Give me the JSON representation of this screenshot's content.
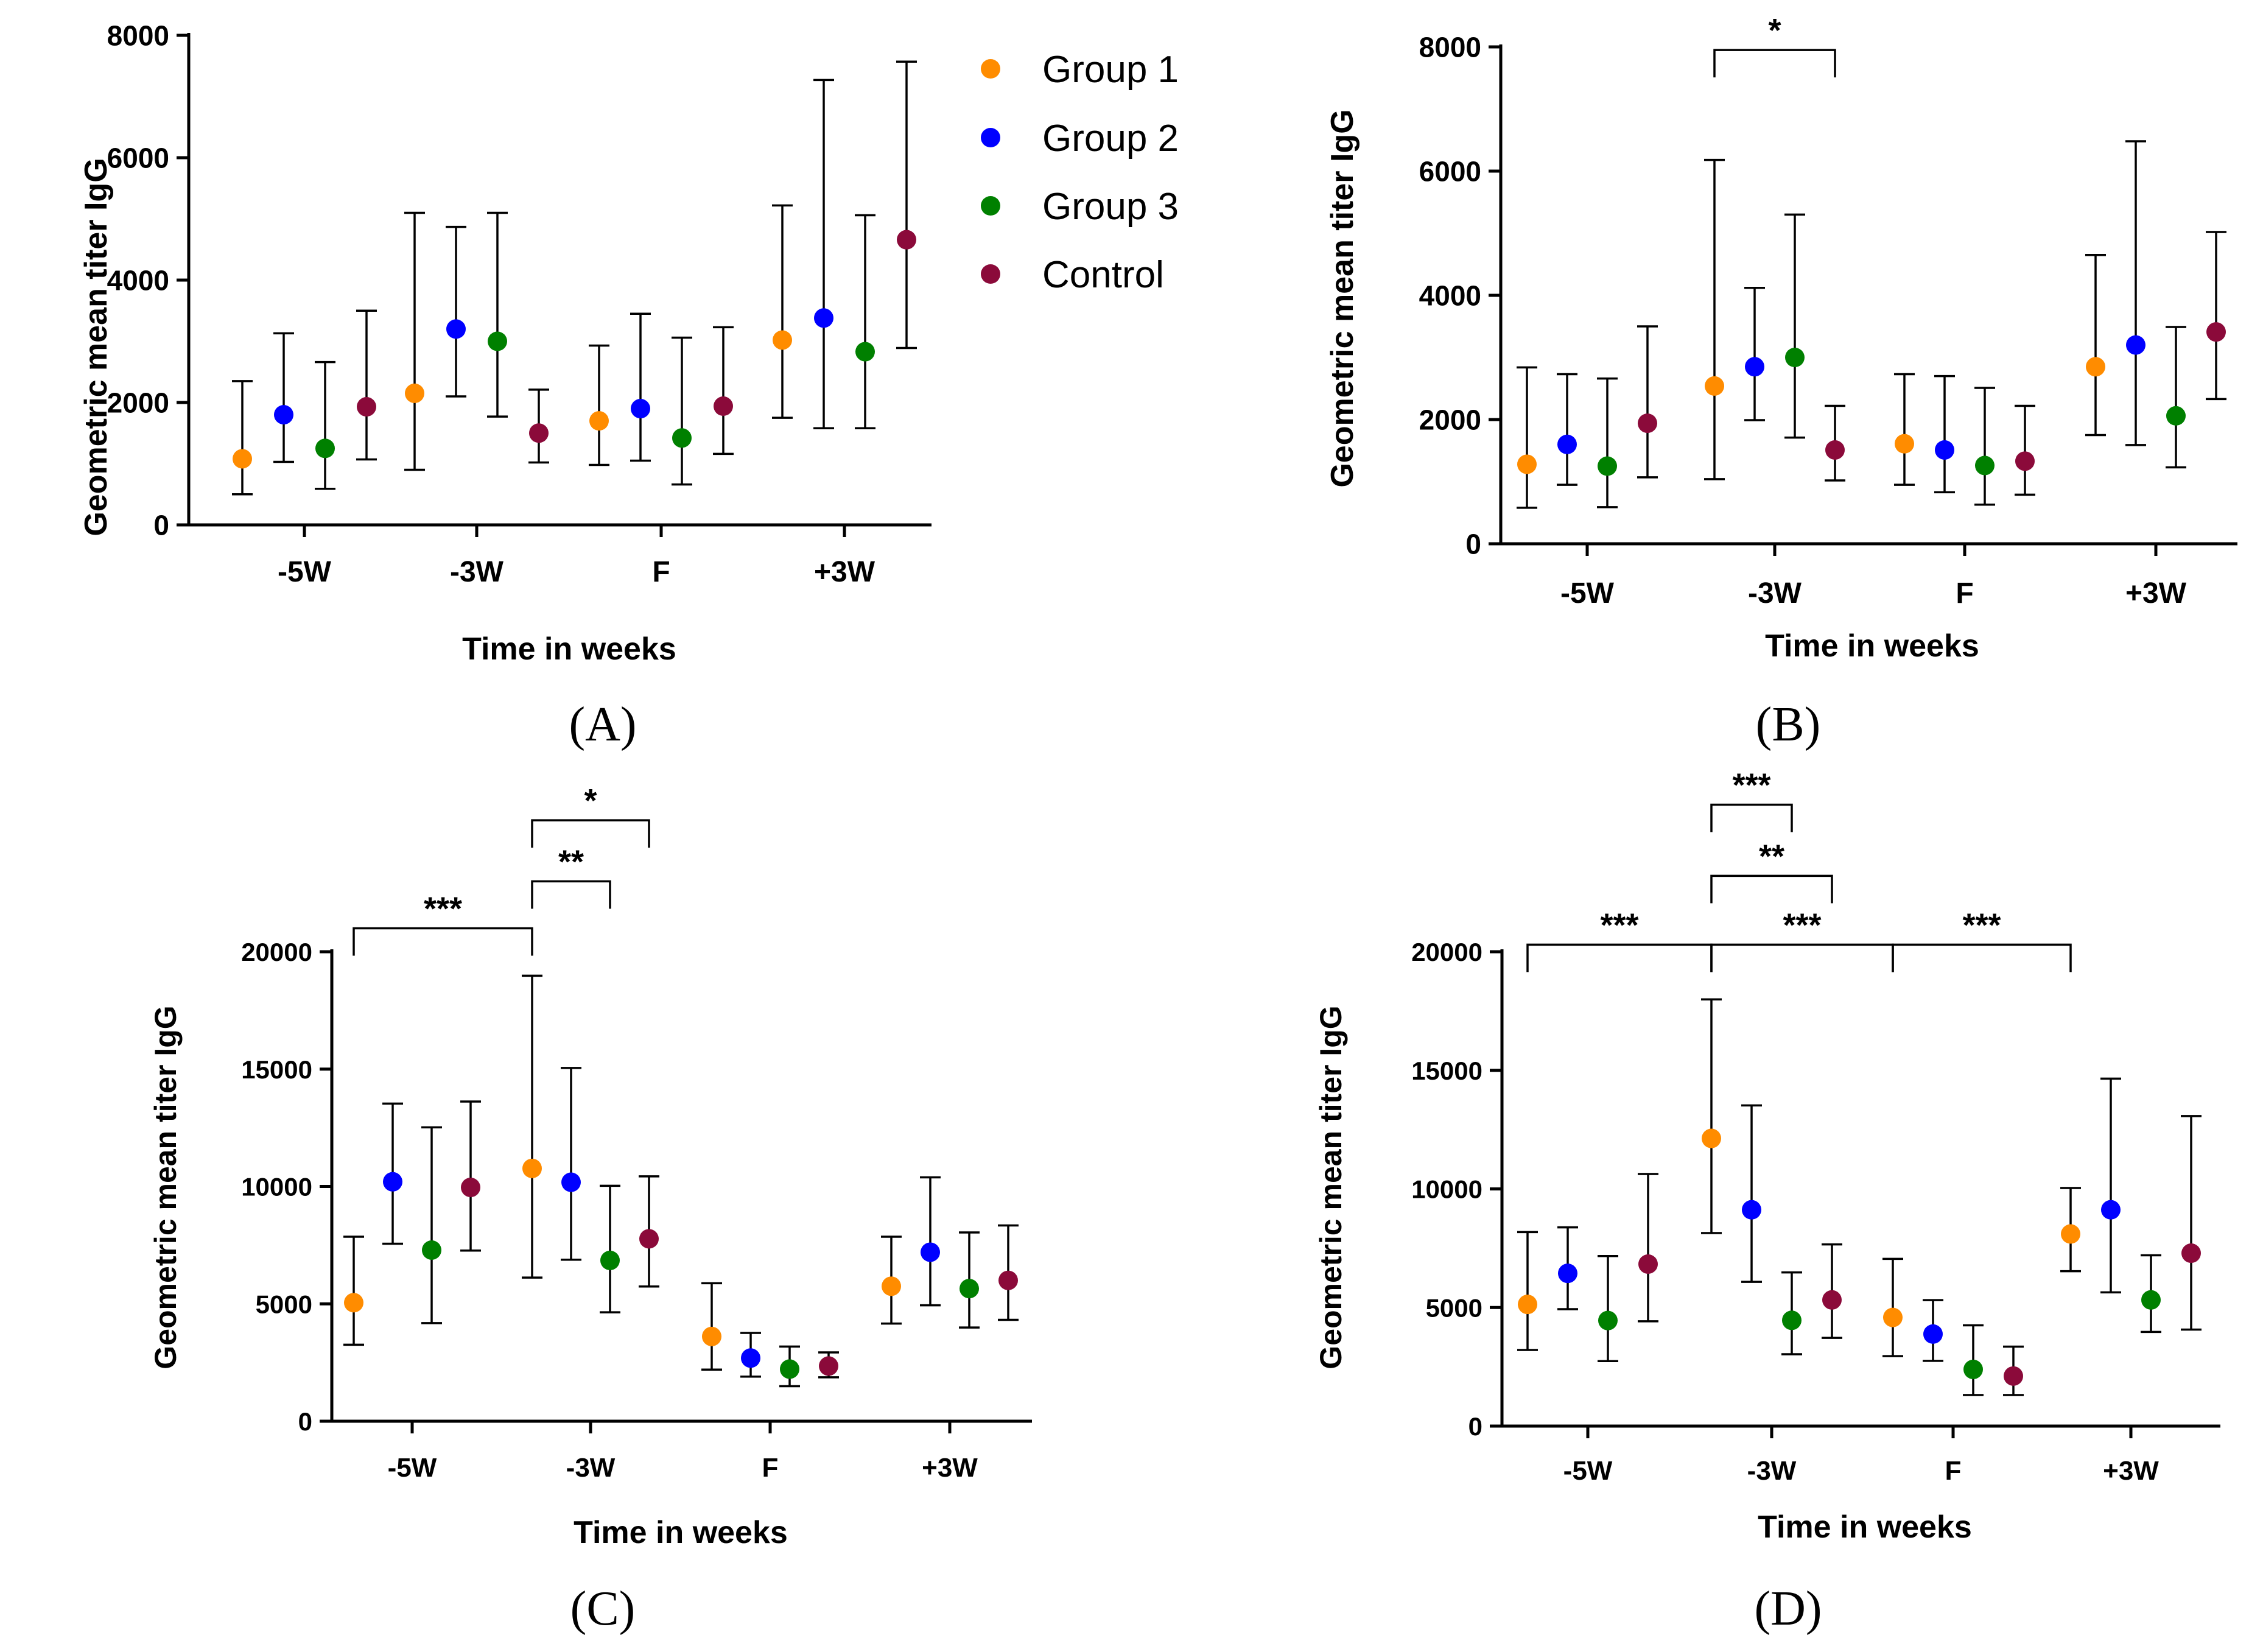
{
  "colors": {
    "Group 1": "#FF8C00",
    "Group 2": "#0000FF",
    "Group 3": "#008000",
    "Control": "#8B0A3A",
    "axis": "#000000"
  },
  "legend": [
    "Group 1",
    "Group 2",
    "Group 3",
    "Control"
  ],
  "chart_data": [
    {
      "panel_label": "(A)",
      "type": "scatter",
      "xlabel": "Time in weeks",
      "ylabel": "Geometric mean titer IgG",
      "categories": [
        "-5W",
        "-3W",
        "F",
        "+3W"
      ],
      "ylim": [
        0,
        8000
      ],
      "yticks": [
        "0",
        "2000",
        "4000",
        "6000",
        "8000"
      ],
      "ytick_values": [
        0,
        2000,
        4000,
        6000,
        8000
      ],
      "legend": "top-right",
      "series": [
        {
          "name": "Group 1",
          "values": [
            1080,
            2150,
            1700,
            3020
          ],
          "upper": [
            2350,
            5100,
            2930,
            5220
          ],
          "lower": [
            500,
            900,
            980,
            1750
          ]
        },
        {
          "name": "Group 2",
          "values": [
            1800,
            3200,
            1900,
            3380
          ],
          "upper": [
            3130,
            4870,
            3450,
            7270
          ],
          "lower": [
            1030,
            2100,
            1050,
            1580
          ]
        },
        {
          "name": "Group 3",
          "values": [
            1250,
            3000,
            1420,
            2830
          ],
          "upper": [
            2660,
            5100,
            3060,
            5060
          ],
          "lower": [
            590,
            1770,
            660,
            1580
          ]
        },
        {
          "name": "Control",
          "values": [
            1930,
            1500,
            1940,
            4660
          ],
          "upper": [
            3500,
            2210,
            3230,
            7570
          ],
          "lower": [
            1070,
            1020,
            1160,
            2890
          ]
        }
      ],
      "significance": []
    },
    {
      "panel_label": "(B)",
      "type": "scatter",
      "xlabel": "Time in weeks",
      "ylabel": "Geometric mean titer IgG",
      "categories": [
        "-5W",
        "-3W",
        "F",
        "+3W"
      ],
      "ylim": [
        0,
        8000
      ],
      "yticks": [
        "0",
        "2000",
        "4000",
        "6000",
        "8000"
      ],
      "ytick_values": [
        0,
        2000,
        4000,
        6000,
        8000
      ],
      "series": [
        {
          "name": "Group 1",
          "values": [
            1280,
            2540,
            1610,
            2850
          ],
          "upper": [
            2840,
            6180,
            2730,
            4650
          ],
          "lower": [
            580,
            1040,
            950,
            1750
          ]
        },
        {
          "name": "Group 2",
          "values": [
            1600,
            2850,
            1510,
            3200
          ],
          "upper": [
            2730,
            4120,
            2700,
            6480
          ],
          "lower": [
            950,
            1990,
            830,
            1590
          ]
        },
        {
          "name": "Group 3",
          "values": [
            1250,
            3000,
            1260,
            2060
          ],
          "upper": [
            2660,
            5300,
            2510,
            3490
          ],
          "lower": [
            590,
            1710,
            630,
            1230
          ]
        },
        {
          "name": "Control",
          "values": [
            1940,
            1510,
            1330,
            3410
          ],
          "upper": [
            3500,
            2220,
            2220,
            5020
          ],
          "lower": [
            1070,
            1020,
            790,
            2330
          ]
        }
      ],
      "significance": [
        {
          "label": "*",
          "from": [
            1,
            0
          ],
          "to": [
            1,
            3
          ],
          "y": 7950
        }
      ]
    },
    {
      "panel_label": "(C)",
      "type": "scatter",
      "xlabel": "Time in weeks",
      "ylabel": "Geometric mean titer IgG",
      "categories": [
        "-5W",
        "-3W",
        "F",
        "+3W"
      ],
      "ylim": [
        0,
        20000
      ],
      "yticks": [
        "0",
        "5000",
        "10000",
        "15000",
        "20000"
      ],
      "ytick_values": [
        0,
        5000,
        10000,
        15000,
        20000
      ],
      "series": [
        {
          "name": "Group 1",
          "values": [
            5050,
            10770,
            3610,
            5750
          ],
          "upper": [
            7860,
            18980,
            5880,
            7860
          ],
          "lower": [
            3260,
            6120,
            2200,
            4160
          ]
        },
        {
          "name": "Group 2",
          "values": [
            10200,
            10180,
            2690,
            7200
          ],
          "upper": [
            13530,
            15050,
            3760,
            10390
          ],
          "lower": [
            7560,
            6880,
            1900,
            4940
          ]
        },
        {
          "name": "Group 3",
          "values": [
            7290,
            6850,
            2220,
            5650
          ],
          "upper": [
            12520,
            10030,
            3180,
            8040
          ],
          "lower": [
            4180,
            4640,
            1490,
            3990
          ]
        },
        {
          "name": "Control",
          "values": [
            9960,
            7770,
            2350,
            6000
          ],
          "upper": [
            13620,
            10430,
            2930,
            8340
          ],
          "lower": [
            7270,
            5740,
            1870,
            4320
          ]
        }
      ],
      "significance": [
        {
          "label": "***",
          "from": [
            0,
            0
          ],
          "to": [
            1,
            0
          ],
          "y": 21000
        },
        {
          "label": "**",
          "from": [
            1,
            0
          ],
          "to": [
            1,
            2
          ],
          "y": 23000
        },
        {
          "label": "*",
          "from": [
            1,
            0
          ],
          "to": [
            1,
            3
          ],
          "y": 25600
        }
      ]
    },
    {
      "panel_label": "(D)",
      "type": "scatter",
      "xlabel": "Time in weeks",
      "ylabel": "Geometric mean titer IgG",
      "categories": [
        "-5W",
        "-3W",
        "F",
        "+3W"
      ],
      "ylim": [
        0,
        20000
      ],
      "yticks": [
        "0",
        "5000",
        "10000",
        "15000",
        "20000"
      ],
      "ytick_values": [
        0,
        5000,
        10000,
        15000,
        20000
      ],
      "series": [
        {
          "name": "Group 1",
          "values": [
            5130,
            12130,
            4580,
            8100
          ],
          "upper": [
            8180,
            17990,
            7050,
            10040
          ],
          "lower": [
            3210,
            8140,
            2950,
            6530
          ]
        },
        {
          "name": "Group 2",
          "values": [
            6440,
            9120,
            3880,
            9120
          ],
          "upper": [
            8380,
            13520,
            5310,
            14650
          ],
          "lower": [
            4930,
            6080,
            2750,
            5640
          ]
        },
        {
          "name": "Group 3",
          "values": [
            4450,
            4460,
            2390,
            5320
          ],
          "upper": [
            7170,
            6480,
            4250,
            7200
          ],
          "lower": [
            2740,
            3030,
            1310,
            3970
          ]
        },
        {
          "name": "Control",
          "values": [
            6830,
            5320,
            2110,
            7290
          ],
          "upper": [
            10630,
            7660,
            3350,
            13070
          ],
          "lower": [
            4420,
            3720,
            1310,
            4070
          ]
        }
      ],
      "significance": [
        {
          "label": "***",
          "from": [
            0,
            0
          ],
          "to": [
            1,
            0
          ],
          "y": 20300
        },
        {
          "label": "***",
          "from": [
            1,
            0
          ],
          "to": [
            2,
            0
          ],
          "y": 20300
        },
        {
          "label": "***",
          "from": [
            2,
            0
          ],
          "to": [
            3,
            0
          ],
          "y": 20300
        },
        {
          "label": "**",
          "from": [
            1,
            0
          ],
          "to": [
            1,
            3
          ],
          "y": 23200
        },
        {
          "label": "***",
          "from": [
            1,
            0
          ],
          "to": [
            1,
            2
          ],
          "y": 26200
        }
      ]
    }
  ]
}
